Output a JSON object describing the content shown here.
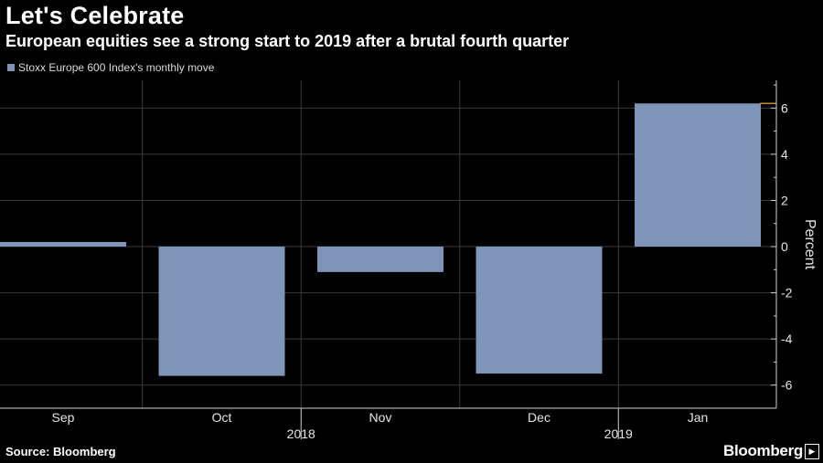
{
  "header": {
    "title": "Let's Celebrate",
    "subtitle": "European equities see a strong start to 2019 after a brutal fourth quarter"
  },
  "footer": {
    "source": "Source: Bloomberg",
    "brand": "Bloomberg"
  },
  "colors": {
    "bar": "#7f95b8",
    "grid": "#3a3a3a",
    "axis": "#cfcfcf",
    "marker": "#c98a2b"
  },
  "chart_data": {
    "type": "bar",
    "title": "Let's Celebrate",
    "subtitle": "European equities see a strong start to 2019 after a brutal fourth quarter",
    "categories": [
      "Sep",
      "Oct",
      "Nov",
      "Dec",
      "Jan"
    ],
    "year_labels": [
      {
        "label": "2018",
        "between": [
          "Oct",
          "Nov"
        ]
      },
      {
        "label": "2019",
        "between": [
          "Dec",
          "Jan"
        ]
      }
    ],
    "series": [
      {
        "name": "Stoxx Europe 600 Index's monthly move",
        "values": [
          0.2,
          -5.6,
          -1.1,
          -5.5,
          6.2
        ]
      }
    ],
    "ylabel": "Percent",
    "ylim": [
      -7,
      7.2
    ],
    "yticks": [
      6,
      4,
      2,
      0,
      -2,
      -4,
      -6
    ],
    "ytick_labels": [
      "6",
      "4",
      "2",
      "0",
      "-2",
      "-4",
      "-6"
    ],
    "y_axis_side": "right",
    "grid": true,
    "legend": "top-left"
  }
}
